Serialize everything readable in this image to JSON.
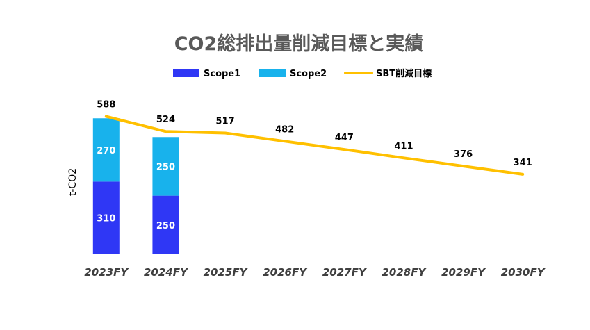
{
  "chart_data": {
    "type": "bar",
    "title": "CO2総排出量削減目標と実績",
    "ylabel": "t-CO2",
    "xlabel": "",
    "categories": [
      "2023FY",
      "2024FY",
      "2025FY",
      "2026FY",
      "2027FY",
      "2028FY",
      "2029FY",
      "2030FY"
    ],
    "series": [
      {
        "name": "Scope1",
        "kind": "stacked-bar",
        "color": "#2f37f5",
        "values": [
          310,
          250,
          null,
          null,
          null,
          null,
          null,
          null
        ]
      },
      {
        "name": "Scope2",
        "kind": "stacked-bar",
        "color": "#18b2ec",
        "values": [
          270,
          250,
          null,
          null,
          null,
          null,
          null,
          null
        ]
      },
      {
        "name": "SBT削減目標",
        "kind": "line",
        "color": "#ffc000",
        "values": [
          588,
          524,
          517,
          482,
          447,
          411,
          376,
          341
        ]
      }
    ],
    "ylim": [
      0,
      640
    ],
    "grid": false,
    "legend_position": "top"
  }
}
